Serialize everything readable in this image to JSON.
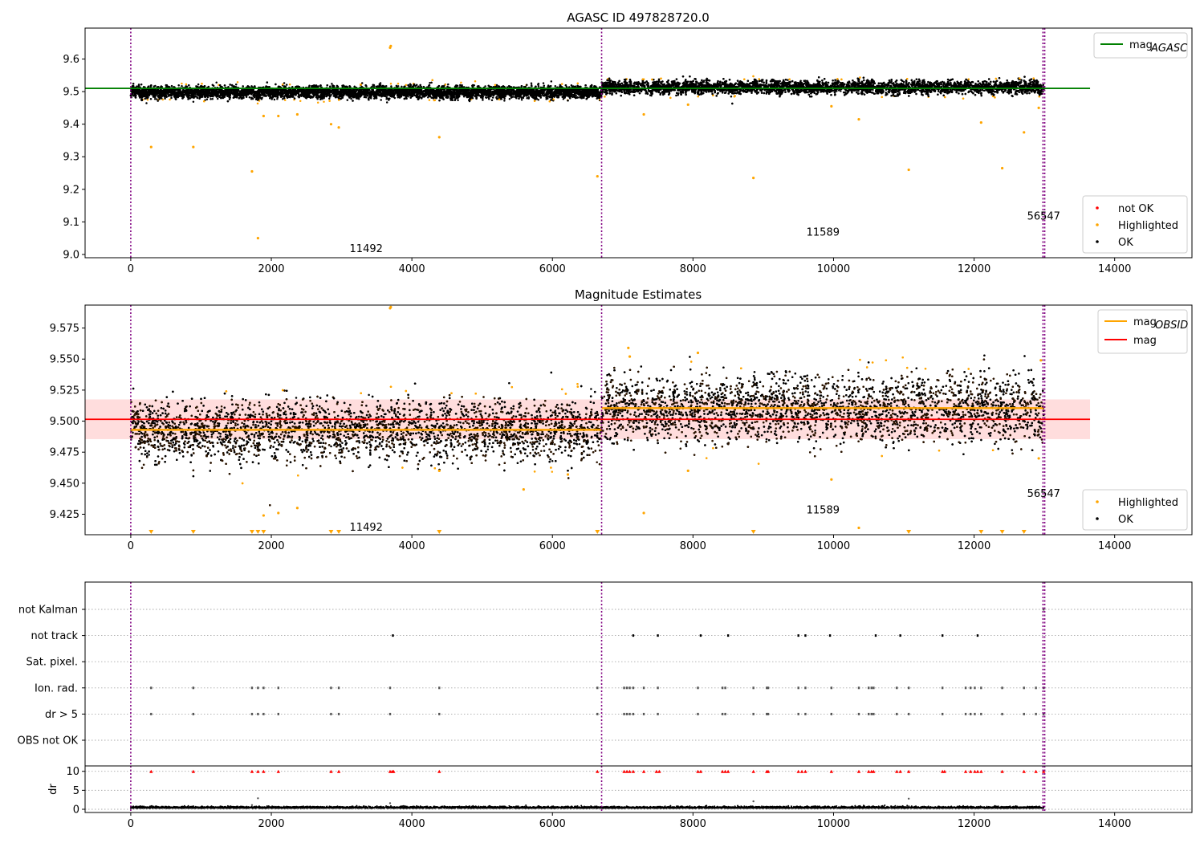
{
  "chart_data": [
    {
      "type": "scatter",
      "title": "AGASC ID 497828720.0",
      "xlim": [
        -650,
        15100
      ],
      "ylim": [
        8.99,
        9.695
      ],
      "xticks": [
        0,
        2000,
        4000,
        6000,
        8000,
        10000,
        12000,
        14000
      ],
      "yticks": [
        9.0,
        9.1,
        9.2,
        9.3,
        9.4,
        9.5,
        9.6
      ],
      "obsid_boundaries": [
        0,
        6700,
        12980,
        13005
      ],
      "obsid_labels": [
        {
          "text": "11492",
          "x": 3350,
          "y": 9.02
        },
        {
          "text": "11589",
          "x": 9850,
          "y": 9.07
        },
        {
          "text": "56547",
          "x": 12990,
          "y": 9.12
        }
      ],
      "segments": [
        {
          "x0": 0,
          "x1": 6700,
          "mean": 9.498,
          "spread": 0.009
        },
        {
          "x0": 6700,
          "x1": 12990,
          "mean": 9.513,
          "spread": 0.01
        }
      ],
      "lines": [
        {
          "name": "mag_AGASC",
          "color": "#008000",
          "y": 9.51,
          "x0": -650,
          "x1": 13650
        }
      ],
      "highlighted_points": [
        [
          290,
          9.33
        ],
        [
          890,
          9.33
        ],
        [
          1725,
          9.255
        ],
        [
          1810,
          9.05
        ],
        [
          1890,
          9.425
        ],
        [
          2100,
          9.425
        ],
        [
          2370,
          9.43
        ],
        [
          2850,
          9.4
        ],
        [
          2960,
          9.39
        ],
        [
          3690,
          9.635
        ],
        [
          3700,
          9.64
        ],
        [
          4390,
          9.36
        ],
        [
          6640,
          9.24
        ],
        [
          7300,
          9.43
        ],
        [
          8860,
          9.235
        ],
        [
          9970,
          9.455
        ],
        [
          10360,
          9.415
        ],
        [
          11070,
          9.26
        ],
        [
          12100,
          9.405
        ],
        [
          12400,
          9.265
        ],
        [
          12710,
          9.375
        ],
        [
          12920,
          9.45
        ],
        [
          7930,
          9.46
        ]
      ],
      "legend": [
        {
          "label": "not OK",
          "color": "#ff0000"
        },
        {
          "label": "Highlighted",
          "color": "#ffa500"
        },
        {
          "label": "OK",
          "color": "#000000"
        }
      ],
      "line_legend": [
        {
          "label": "mag",
          "subscript": "AGASC",
          "color": "#008000"
        }
      ]
    },
    {
      "type": "scatter",
      "title": "Magnitude Estimates",
      "xlim": [
        -650,
        15100
      ],
      "ylim": [
        9.4085,
        9.5935
      ],
      "xticks": [
        0,
        2000,
        4000,
        6000,
        8000,
        10000,
        12000,
        14000
      ],
      "yticks": [
        9.425,
        9.45,
        9.475,
        9.5,
        9.525,
        9.55,
        9.575
      ],
      "ytick_labels": [
        "9.425",
        "9.450",
        "9.475",
        "9.500",
        "9.525",
        "9.550",
        "9.575"
      ],
      "obsid_boundaries": [
        0,
        6700,
        12980,
        13005
      ],
      "obsid_labels": [
        {
          "text": "11492",
          "x": 3350,
          "y": 9.415
        },
        {
          "text": "11589",
          "x": 9850,
          "y": 9.429
        },
        {
          "text": "56547",
          "x": 12990,
          "y": 9.442
        }
      ],
      "segments": [
        {
          "x0": 0,
          "x1": 6700,
          "mean": 9.493,
          "spread": 0.012
        },
        {
          "x0": 6700,
          "x1": 12990,
          "mean": 9.51,
          "spread": 0.013
        }
      ],
      "band": {
        "y0": 9.4855,
        "y1": 9.5175,
        "x0": -650,
        "x1": 13650,
        "color": "#ffd7d7"
      },
      "lines": [
        {
          "name": "mag",
          "color": "#ff0000",
          "y": 9.5015,
          "x0": -650,
          "x1": 13650
        },
        {
          "name": "mag_OBSID_1",
          "color": "#ffa500",
          "y": 9.493,
          "x0": 0,
          "x1": 6700
        },
        {
          "name": "mag_OBSID_2",
          "color": "#ffa500",
          "y": 9.5105,
          "x0": 6700,
          "x1": 12990
        }
      ],
      "highlighted_points": [
        [
          3700,
          9.592
        ],
        [
          3690,
          9.591
        ],
        [
          1890,
          9.424
        ],
        [
          2100,
          9.426
        ],
        [
          2370,
          9.43
        ],
        [
          7300,
          9.426
        ],
        [
          7930,
          9.46
        ],
        [
          9970,
          9.453
        ],
        [
          10360,
          9.414
        ],
        [
          5590,
          9.445
        ],
        [
          4390,
          9.46
        ],
        [
          6220,
          9.457
        ],
        [
          12920,
          9.47
        ],
        [
          12950,
          9.549
        ],
        [
          7080,
          9.559
        ],
        [
          7100,
          9.552
        ],
        [
          8070,
          9.555
        ]
      ],
      "clipped_markers_x": [
        290,
        890,
        1725,
        1810,
        1890,
        2850,
        2960,
        4390,
        6640,
        8860,
        11070,
        12100,
        12400,
        12710
      ],
      "legend": [
        {
          "label": "Highlighted",
          "color": "#ffa500"
        },
        {
          "label": "OK",
          "color": "#000000"
        }
      ],
      "line_legend": [
        {
          "label": "mag",
          "subscript": "OBSID",
          "color": "#ffa500"
        },
        {
          "label": "mag",
          "subscript": "",
          "color": "#ff0000"
        }
      ]
    },
    {
      "type": "scatter",
      "title": "",
      "xlim": [
        -650,
        15100
      ],
      "categories": [
        "not Kalman",
        "not track",
        "Sat. pixel.",
        "Ion. rad.",
        "dr > 5",
        "OBS not OK"
      ],
      "obsid_boundaries": [
        0,
        6700,
        12980,
        13005
      ],
      "flags": {
        "not Kalman": [
          12990
        ],
        "not track": [
          3730,
          7150,
          7500,
          8110,
          8500,
          9500,
          9600,
          9950,
          10600,
          10950,
          11550,
          12050
        ],
        "Sat. pixel.": [],
        "Ion. rad.": [
          290,
          890,
          1725,
          1810,
          1890,
          2100,
          2850,
          2960,
          3690,
          4390,
          6640,
          7020,
          7060,
          7100,
          7150,
          7300,
          7500,
          8070,
          8420,
          8460,
          8860,
          9050,
          9070,
          9500,
          9600,
          9970,
          10360,
          10500,
          10540,
          10570,
          10900,
          11070,
          11550,
          11880,
          11950,
          12010,
          12100,
          12400,
          12710,
          12880,
          12990
        ],
        "dr > 5": [
          290,
          890,
          1725,
          1810,
          1890,
          2100,
          2850,
          2960,
          3690,
          4390,
          6640,
          7020,
          7060,
          7100,
          7150,
          7300,
          7500,
          8070,
          8420,
          8460,
          8860,
          9050,
          9070,
          9500,
          9600,
          9970,
          10360,
          10500,
          10540,
          10570,
          10900,
          11070,
          11550,
          11880,
          11950,
          12010,
          12100,
          12400,
          12710,
          12880,
          12990
        ],
        "OBS not OK": []
      },
      "dr": {
        "ylabel": "dr",
        "ylim": [
          -0.5,
          10.5
        ],
        "yticks": [
          0,
          5,
          10
        ],
        "clip_value": 10,
        "clipped_x": [
          290,
          890,
          1725,
          1810,
          1890,
          2100,
          2850,
          2960,
          3690,
          3720,
          3740,
          4390,
          6640,
          7020,
          7060,
          7100,
          7150,
          7300,
          7480,
          7520,
          8070,
          8110,
          8420,
          8460,
          8500,
          8860,
          9050,
          9070,
          9500,
          9550,
          9600,
          9970,
          10360,
          10500,
          10540,
          10570,
          10900,
          10950,
          11070,
          11550,
          11580,
          11880,
          11950,
          12010,
          12050,
          12100,
          12400,
          12710,
          12880,
          12990
        ],
        "outliers": [
          [
            1810,
            2.9
          ],
          [
            3690,
            1.6
          ],
          [
            8860,
            2.1
          ],
          [
            11070,
            2.8
          ],
          [
            1725,
            1.1
          ]
        ]
      }
    }
  ]
}
